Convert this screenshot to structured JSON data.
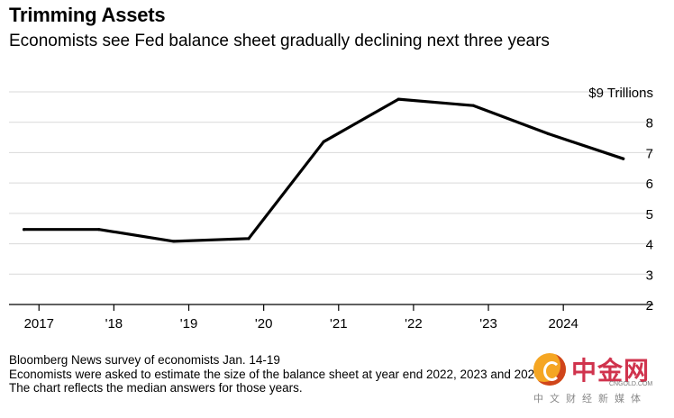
{
  "title": "Trimming Assets",
  "subtitle": "Economists see Fed balance sheet gradually declining next three years",
  "notes": [
    "Bloomberg News survey of economists Jan. 14-19",
    "Economists were asked to estimate the size of the balance sheet at year end 2022, 2023 and 2024",
    "The chart reflects the median answers for those years."
  ],
  "watermark": {
    "brand": "中金网",
    "domain": "CNGOLD.COM",
    "tagline": "中文财经新媒体"
  },
  "chart_data": {
    "type": "line",
    "title": "Trimming Assets",
    "subtitle": "Economists see Fed balance sheet gradually declining next three years",
    "x": [
      2016.8,
      2017.8,
      2018.8,
      2019.8,
      2020.8,
      2021.8,
      2022.8,
      2023.8,
      2024.8
    ],
    "series": [
      {
        "values": [
          4.47,
          4.47,
          4.08,
          4.17,
          7.36,
          8.76,
          8.55,
          7.62,
          6.8
        ]
      }
    ],
    "xlim": [
      2016.6,
      2024.9
    ],
    "ylim": [
      2,
      9
    ],
    "yticks": [
      2,
      3,
      4,
      5,
      6,
      7,
      8,
      9
    ],
    "ytick_labels": [
      "2",
      "3",
      "4",
      "5",
      "6",
      "7",
      "8",
      "$9 Trillions"
    ],
    "xticks": [
      2017,
      2018,
      2019,
      2020,
      2021,
      2022,
      2023,
      2024
    ],
    "xtick_labels": [
      "2017",
      "'18",
      "'19",
      "'20",
      "'21",
      "'22",
      "'23",
      "2024"
    ],
    "grid": true,
    "line_color": "#000000",
    "grid_color": "#d9d9d9"
  }
}
